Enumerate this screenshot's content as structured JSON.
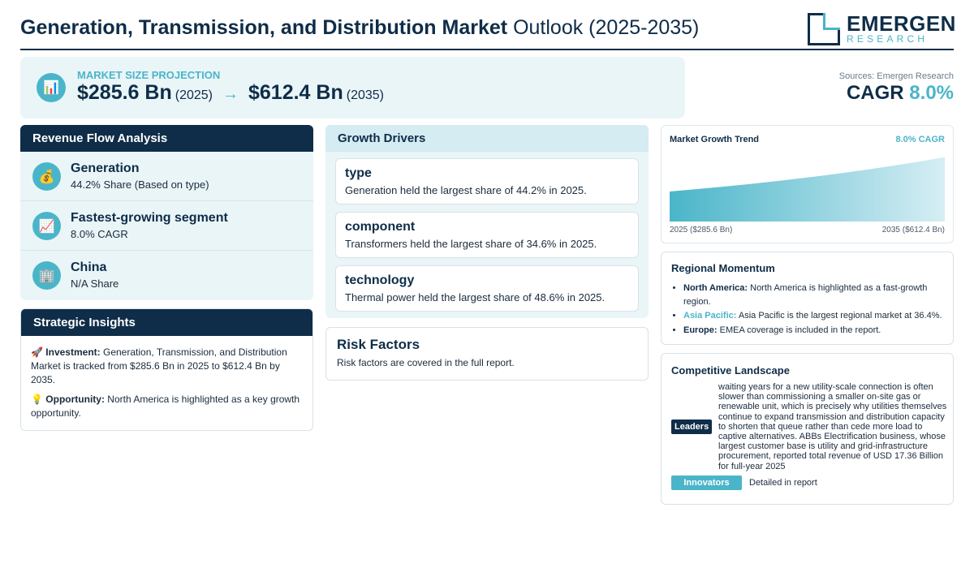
{
  "header": {
    "title_bold": "Generation, Transmission, and Distribution Market",
    "title_rest": "Outlook (2025-2035)",
    "logo_main": "EMERGEN",
    "logo_sub": "RESEARCH"
  },
  "projection": {
    "label": "MARKET SIZE PROJECTION",
    "icon": "bar-chart-icon",
    "start_value": "$285.6 Bn",
    "start_year": "(2025)",
    "arrow": "→",
    "end_value": "$612.4 Bn",
    "end_year": "(2035)"
  },
  "sources": "Sources: Emergen Research",
  "cagr": {
    "label": "CAGR",
    "value": "8.0%"
  },
  "revenue_flow": {
    "title": "Revenue Flow Analysis",
    "items": [
      {
        "icon": "money-bag-icon",
        "glyph": "💰",
        "title": "Generation",
        "sub": "44.2% Share (Based on type)"
      },
      {
        "icon": "chart-up-icon",
        "glyph": "📈",
        "title": "Fastest-growing segment",
        "sub": "8.0% CAGR"
      },
      {
        "icon": "building-icon",
        "glyph": "🏢",
        "title": "China",
        "sub": "N/A Share"
      }
    ]
  },
  "strategic": {
    "title": "Strategic Insights",
    "investment_label": "Investment:",
    "investment_text": "Generation, Transmission, and Distribution Market is tracked from $285.6 Bn in 2025 to $612.4 Bn by 2035.",
    "opportunity_label": "Opportunity:",
    "opportunity_text": "North America is highlighted as a key growth opportunity."
  },
  "drivers": {
    "title": "Growth Drivers",
    "items": [
      {
        "title": "type",
        "text": "Generation held the largest share of 44.2% in 2025."
      },
      {
        "title": "component",
        "text": "Transformers held the largest share of 34.6% in 2025."
      },
      {
        "title": "technology",
        "text": "Thermal power held the largest share of 48.6% in 2025."
      }
    ]
  },
  "risk": {
    "title": "Risk Factors",
    "text": "Risk factors are covered in the full report."
  },
  "trend": {
    "title": "Market Growth Trend",
    "cagr": "8.0% CAGR",
    "start_label": "2025 ($285.6 Bn)",
    "end_label": "2035 ($612.4 Bn)"
  },
  "chart_data": {
    "type": "area",
    "title": "Market Growth Trend",
    "x": [
      2025,
      2035
    ],
    "values": [
      285.6,
      612.4
    ],
    "units": "Bn USD"
  },
  "regional": {
    "title": "Regional Momentum",
    "items": [
      {
        "name": "North America:",
        "text": "North America is highlighted as a fast-growth region."
      },
      {
        "name": "Asia Pacific:",
        "text": "Asia Pacific is the largest regional market at 36.4%."
      },
      {
        "name": "Europe:",
        "text": "EMEA coverage is included in the report."
      }
    ]
  },
  "competitive": {
    "title": "Competitive Landscape",
    "leaders_label": "Leaders",
    "leaders_text": "waiting years for a new utility-scale connection is often slower than commissioning a smaller on-site gas or renewable unit, which is precisely why utilities themselves continue to expand transmission and distribution capacity to shorten that queue rather than cede more load to captive alternatives. ABBs Electrification business, whose largest customer base is utility and grid-infrastructure procurement, reported total revenue of USD 17.36 Billion for full-year 2025",
    "innovators_label": "Innovators",
    "innovators_text": "Detailed in report"
  },
  "colors": {
    "navy": "#0f2d48",
    "teal": "#4ab5c9",
    "panel": "#eaf5f8"
  }
}
